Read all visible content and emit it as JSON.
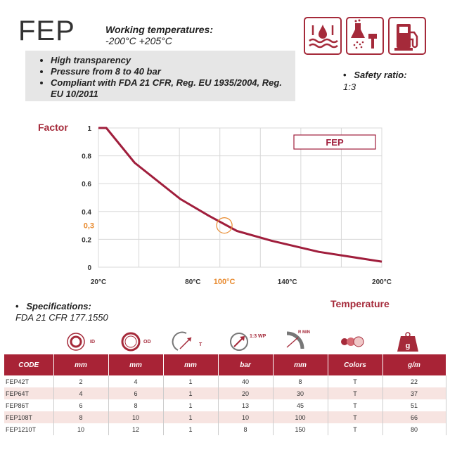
{
  "header": {
    "title": "FEP",
    "working_temp_label": "Working temperatures:",
    "working_temp_value": "-200°C +205°C",
    "features": [
      "High transparency",
      "Pressure from 8 to 40 bar",
      "Compliant with FDA 21 CFR, Reg. EU 1935/2004, Reg. EU 10/2011"
    ],
    "safety_label": "Safety ratio:",
    "safety_value": "1:3",
    "icons": [
      "water-resistance-icon",
      "chemical-spray-icon",
      "fuel-pump-icon"
    ]
  },
  "chart_data": {
    "type": "line",
    "title": "",
    "ylabel": "Factor",
    "xlabel": "Temperature",
    "legend": "FEP",
    "legend_position": "top-right",
    "grid": true,
    "xlim": [
      20,
      200
    ],
    "ylim": [
      0,
      1
    ],
    "x_ticks": [
      "20°C",
      "80°C",
      "100°C",
      "140°C",
      "200°C"
    ],
    "x_tick_values": [
      20,
      80,
      100,
      140,
      200
    ],
    "y_ticks": [
      "1",
      "0.8",
      "0.6",
      "0.4",
      "0,3",
      "0.2",
      "0"
    ],
    "y_tick_values": [
      1,
      0.8,
      0.6,
      0.4,
      0.3,
      0.2,
      0
    ],
    "highlight": {
      "x": 100,
      "y": 0.3,
      "color": "#e88a2e"
    },
    "line_color": "#a01e3c",
    "series": [
      {
        "name": "FEP",
        "x": [
          20,
          25,
          43,
          72,
          90,
          108,
          130,
          160,
          200
        ],
        "y": [
          1,
          1,
          0.75,
          0.49,
          0.37,
          0.26,
          0.19,
          0.11,
          0.04
        ]
      }
    ]
  },
  "specs": {
    "label": "Specifications:",
    "value": "FDA 21 CFR 177.1550"
  },
  "table": {
    "icon_labels": [
      "ID",
      "OD",
      "T",
      "1:3 WP",
      "R MIN",
      "",
      ""
    ],
    "icons": [
      "inner-diameter-icon",
      "outer-diameter-icon",
      "thickness-icon",
      "working-pressure-icon",
      "bend-radius-icon",
      "colors-icon",
      "weight-icon"
    ],
    "headers": [
      "CODE",
      "mm",
      "mm",
      "mm",
      "bar",
      "mm",
      "Colors",
      "g/m"
    ],
    "rows": [
      [
        "FEP42T",
        "2",
        "4",
        "1",
        "40",
        "8",
        "T",
        "22"
      ],
      [
        "FEP64T",
        "4",
        "6",
        "1",
        "20",
        "30",
        "T",
        "37"
      ],
      [
        "FEP86T",
        "6",
        "8",
        "1",
        "13",
        "45",
        "T",
        "51"
      ],
      [
        "FEP108T",
        "8",
        "10",
        "1",
        "10",
        "100",
        "T",
        "66"
      ],
      [
        "FEP1210T",
        "10",
        "12",
        "1",
        "8",
        "150",
        "T",
        "80"
      ]
    ]
  }
}
